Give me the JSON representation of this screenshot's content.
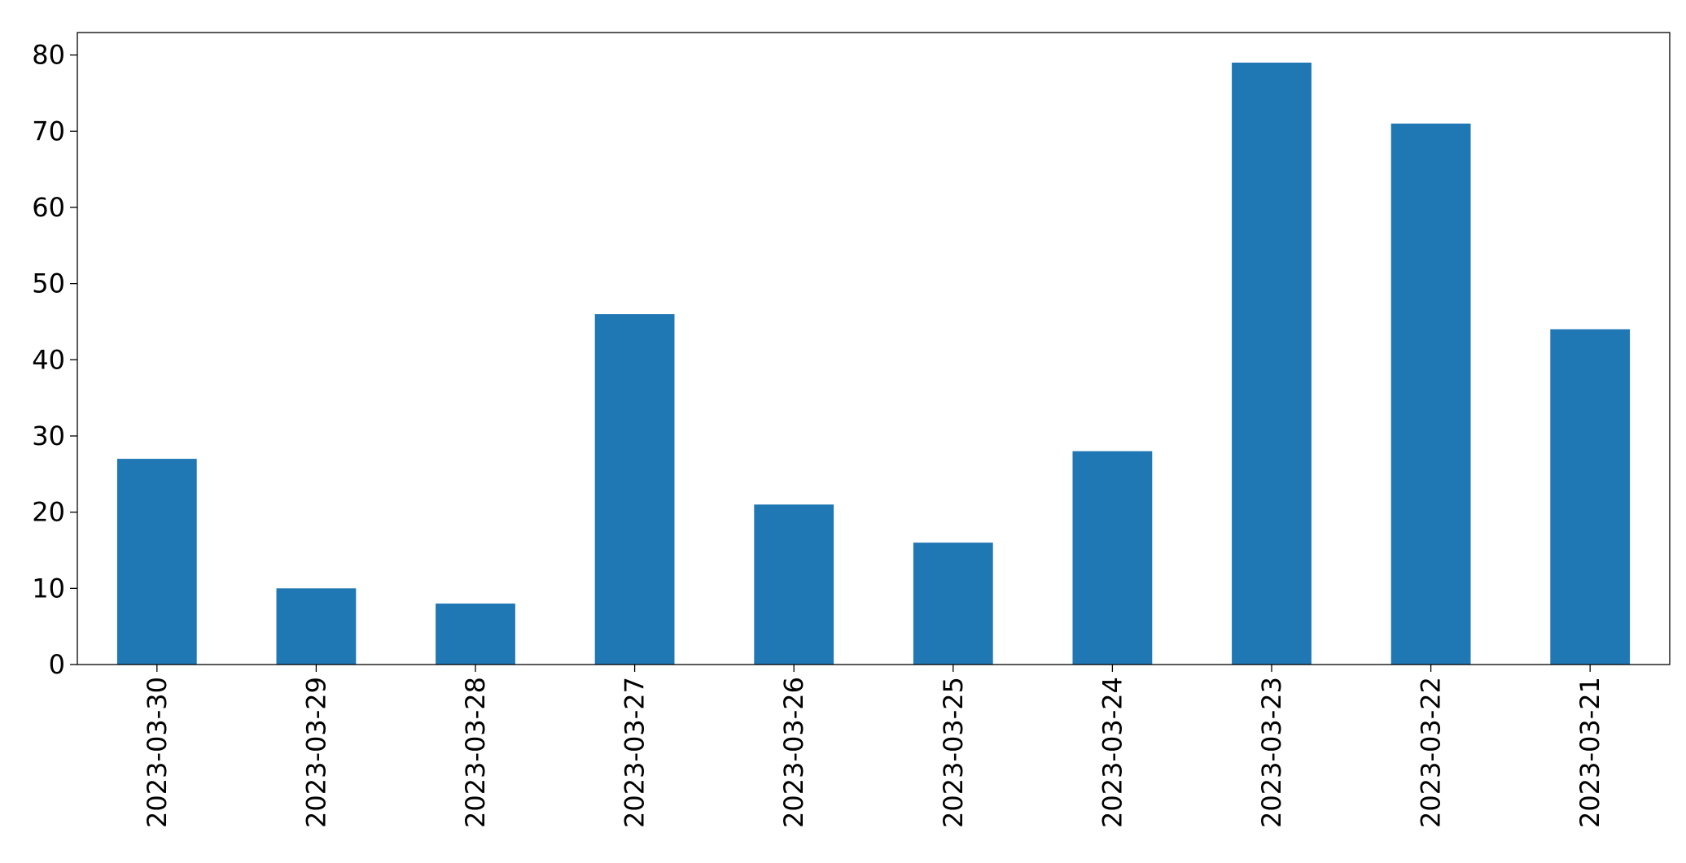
{
  "chart_data": {
    "type": "bar",
    "categories": [
      "2023-03-30",
      "2023-03-29",
      "2023-03-28",
      "2023-03-27",
      "2023-03-26",
      "2023-03-25",
      "2023-03-24",
      "2023-03-23",
      "2023-03-22",
      "2023-03-21"
    ],
    "values": [
      27,
      10,
      8,
      46,
      21,
      16,
      28,
      79,
      71,
      44
    ],
    "color": "#1f77b4",
    "ylim": [
      0,
      82.95
    ],
    "yticks": [
      0,
      10,
      20,
      30,
      40,
      50,
      60,
      70,
      80
    ],
    "grid": false
  }
}
